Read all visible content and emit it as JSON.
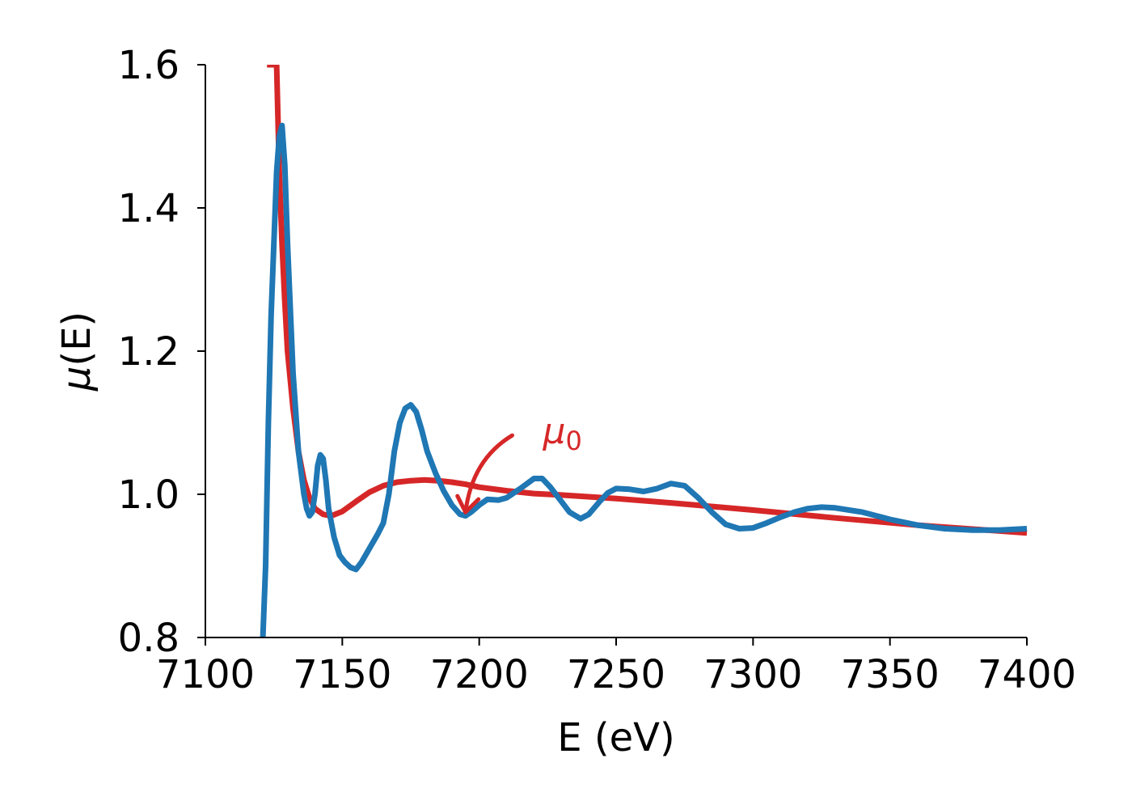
{
  "chart_data": {
    "type": "line",
    "xlabel": "E (eV)",
    "ylabel_symbol": "μ",
    "ylabel_arg": "(E)",
    "xlim": [
      7100,
      7400
    ],
    "ylim": [
      0.8,
      1.6
    ],
    "xticks": [
      7100,
      7150,
      7200,
      7250,
      7300,
      7350,
      7400
    ],
    "yticks": [
      "0.8",
      "1.0",
      "1.2",
      "1.4",
      "1.6"
    ],
    "grid": false,
    "spines": [
      "left",
      "bottom"
    ],
    "series": [
      {
        "color": "#d62728",
        "x": [
          7122.5,
          7123,
          7124,
          7125,
          7126,
          7127,
          7128,
          7129,
          7130,
          7132,
          7134,
          7136,
          7138,
          7140,
          7143,
          7146,
          7150,
          7155,
          7160,
          7165,
          7170,
          7175,
          7180,
          7185,
          7190,
          7195,
          7200,
          7210,
          7220,
          7230,
          7250,
          7270,
          7300,
          7330,
          7360,
          7400
        ],
        "y": [
          1.6,
          1.6,
          1.6,
          1.6,
          1.6,
          1.45,
          1.35,
          1.27,
          1.2,
          1.12,
          1.06,
          1.02,
          0.995,
          0.98,
          0.972,
          0.97,
          0.976,
          0.99,
          1.003,
          1.012,
          1.017,
          1.019,
          1.02,
          1.019,
          1.017,
          1.014,
          1.01,
          1.005,
          1.001,
          0.999,
          0.994,
          0.988,
          0.978,
          0.967,
          0.957,
          0.946
        ]
      },
      {
        "color": "#1f77b4",
        "x": [
          7121,
          7122,
          7123,
          7124,
          7125,
          7126,
          7127,
          7128,
          7129,
          7130,
          7132,
          7134,
          7136,
          7137,
          7138,
          7139,
          7140,
          7141,
          7142,
          7143,
          7144,
          7145,
          7147,
          7149,
          7151,
          7153,
          7155,
          7157,
          7160,
          7163,
          7165,
          7167,
          7169,
          7171,
          7173,
          7175,
          7177,
          7179,
          7181,
          7184,
          7187,
          7190,
          7193,
          7195,
          7197,
          7200,
          7203,
          7207,
          7210,
          7215,
          7220,
          7223,
          7226,
          7230,
          7233,
          7237,
          7240,
          7244,
          7247,
          7250,
          7255,
          7260,
          7265,
          7270,
          7275,
          7280,
          7285,
          7290,
          7295,
          7300,
          7305,
          7310,
          7315,
          7320,
          7325,
          7330,
          7340,
          7350,
          7360,
          7370,
          7380,
          7390,
          7400
        ],
        "y": [
          0.8,
          0.9,
          1.1,
          1.25,
          1.35,
          1.45,
          1.5,
          1.515,
          1.46,
          1.35,
          1.17,
          1.06,
          1.0,
          0.98,
          0.97,
          0.975,
          1.0,
          1.04,
          1.055,
          1.05,
          1.02,
          0.98,
          0.94,
          0.915,
          0.905,
          0.898,
          0.895,
          0.905,
          0.925,
          0.945,
          0.96,
          1.0,
          1.06,
          1.1,
          1.12,
          1.125,
          1.115,
          1.09,
          1.06,
          1.03,
          1.005,
          0.985,
          0.972,
          0.97,
          0.975,
          0.985,
          0.993,
          0.992,
          0.995,
          1.008,
          1.022,
          1.022,
          1.01,
          0.99,
          0.975,
          0.966,
          0.972,
          0.99,
          1.002,
          1.008,
          1.007,
          1.004,
          1.008,
          1.015,
          1.012,
          0.995,
          0.975,
          0.958,
          0.952,
          0.953,
          0.96,
          0.968,
          0.975,
          0.98,
          0.982,
          0.981,
          0.975,
          0.965,
          0.957,
          0.952,
          0.95,
          0.95,
          0.952
        ]
      }
    ],
    "annotation": {
      "symbol": "μ",
      "subscript": "0",
      "color": "#d62728",
      "text_x": 7215,
      "text_y": 1.08,
      "arrow_tip_x": 7195,
      "arrow_tip_y": 0.975
    }
  }
}
